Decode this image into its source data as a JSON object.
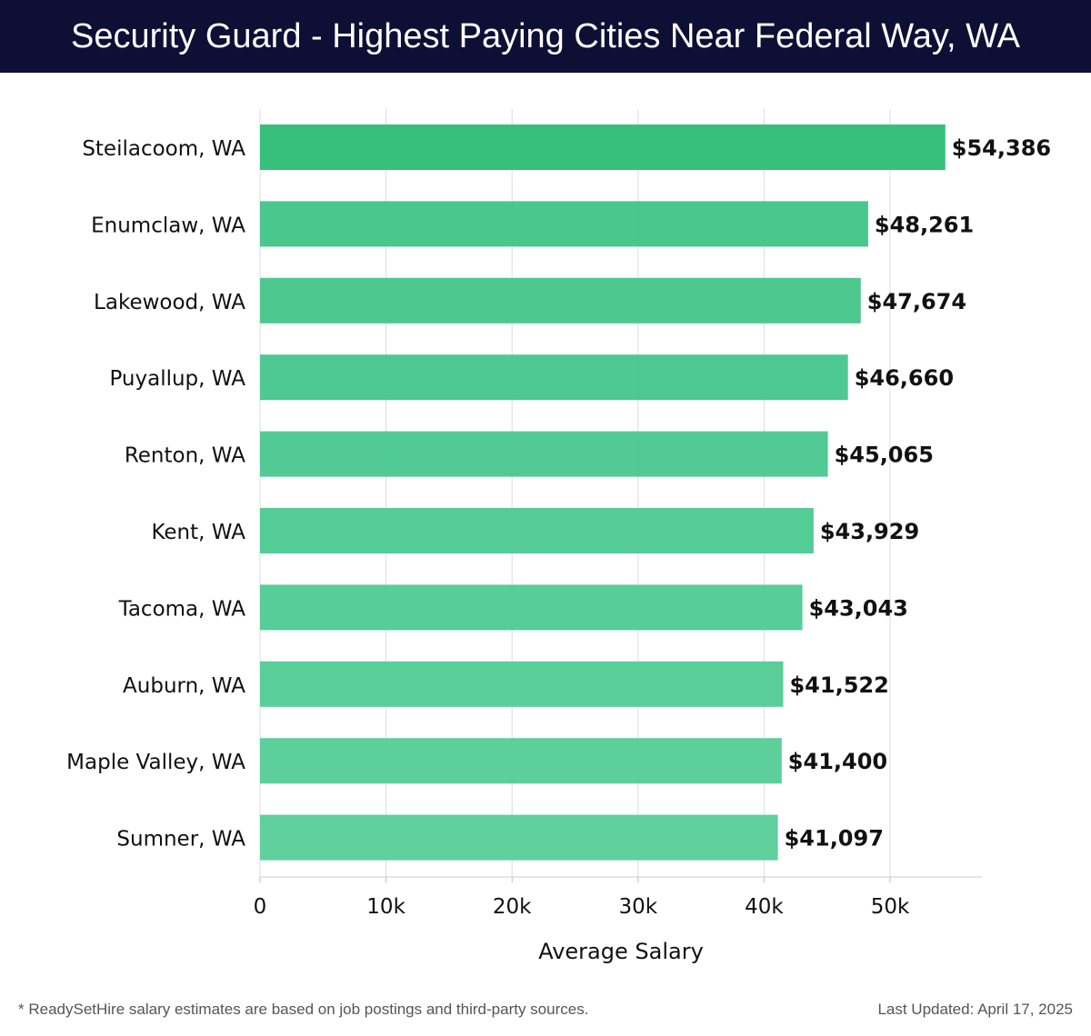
{
  "header": {
    "title": "Security Guard - Highest Paying Cities Near Federal Way, WA"
  },
  "chart_data": {
    "type": "bar",
    "orientation": "horizontal",
    "categories": [
      "Steilacoom, WA",
      "Enumclaw, WA",
      "Lakewood, WA",
      "Puyallup, WA",
      "Renton, WA",
      "Kent, WA",
      "Tacoma, WA",
      "Auburn, WA",
      "Maple Valley, WA",
      "Sumner, WA"
    ],
    "values": [
      54386,
      48261,
      47674,
      46660,
      45065,
      43929,
      43043,
      41522,
      41400,
      41097
    ],
    "value_labels": [
      "$54,386",
      "$48,261",
      "$47,674",
      "$46,660",
      "$45,065",
      "$43,929",
      "$43,043",
      "$41,522",
      "$41,400",
      "$41,097"
    ],
    "xlabel": "Average Salary",
    "ylabel": "",
    "xlim": [
      0,
      57000
    ],
    "xticks": [
      0,
      10000,
      20000,
      30000,
      40000,
      50000
    ],
    "xtick_labels": [
      "0",
      "10k",
      "20k",
      "30k",
      "40k",
      "50k"
    ],
    "grid": true,
    "colors": {
      "top": "#2bbd74",
      "rest": "#3fc487",
      "last": "#57cd97"
    }
  },
  "footer": {
    "note": "* ReadySetHire salary estimates are based on job postings and third-party sources.",
    "updated": "Last Updated: April 17, 2025"
  }
}
